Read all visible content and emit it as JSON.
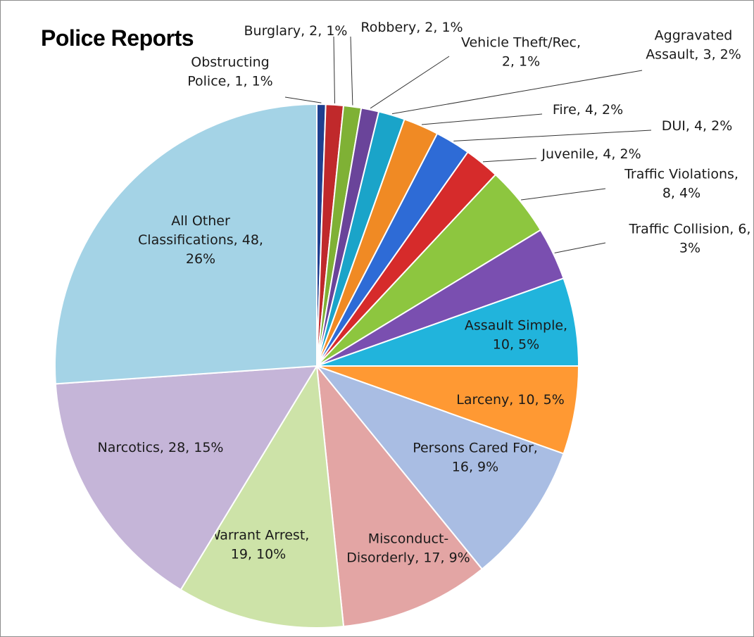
{
  "chart_data": {
    "type": "pie",
    "title": "Police Reports",
    "slices": [
      {
        "name": "Obstructing Police",
        "value": 1,
        "percent": "1%",
        "label_lines": [
          "Obstructing",
          "Police, 1, 1%"
        ],
        "color": "#1f3f8f"
      },
      {
        "name": "Burglary",
        "value": 2,
        "percent": "1%",
        "label_lines": [
          "Burglary, 2, 1%"
        ],
        "color": "#c0292b"
      },
      {
        "name": "Robbery",
        "value": 2,
        "percent": "1%",
        "label_lines": [
          "Robbery, 2, 1%"
        ],
        "color": "#7fb135"
      },
      {
        "name": "Vehicle Theft/Rec",
        "value": 2,
        "percent": "1%",
        "label_lines": [
          "Vehicle Theft/Rec,",
          "2, 1%"
        ],
        "color": "#6a449a"
      },
      {
        "name": "Aggravated Assault",
        "value": 3,
        "percent": "2%",
        "label_lines": [
          "Aggravated",
          "Assault, 3, 2%"
        ],
        "color": "#1aa4c9"
      },
      {
        "name": "Fire",
        "value": 4,
        "percent": "2%",
        "label_lines": [
          "Fire, 4, 2%"
        ],
        "color": "#f08a24"
      },
      {
        "name": "DUI",
        "value": 4,
        "percent": "2%",
        "label_lines": [
          "DUI, 4, 2%"
        ],
        "color": "#2e6bd6"
      },
      {
        "name": "Juvenile",
        "value": 4,
        "percent": "2%",
        "label_lines": [
          "Juvenile, 4, 2%"
        ],
        "color": "#d62b2b"
      },
      {
        "name": "Traffic Violations",
        "value": 8,
        "percent": "4%",
        "label_lines": [
          "Traffic Violations,",
          "8, 4%"
        ],
        "color": "#8dc63f"
      },
      {
        "name": "Traffic Collision",
        "value": 6,
        "percent": "3%",
        "label_lines": [
          "Traffic Collision, 6,",
          "3%"
        ],
        "color": "#7a4fb0"
      },
      {
        "name": "Assault Simple",
        "value": 10,
        "percent": "5%",
        "label_lines": [
          "Assault Simple,",
          "10, 5%"
        ],
        "color": "#21b4dc"
      },
      {
        "name": "Larceny",
        "value": 10,
        "percent": "5%",
        "label_lines": [
          "Larceny, 10, 5%"
        ],
        "color": "#ff9933"
      },
      {
        "name": "Persons Cared For",
        "value": 16,
        "percent": "9%",
        "label_lines": [
          "Persons Cared For,",
          "16, 9%"
        ],
        "color": "#a9bde3"
      },
      {
        "name": "Misconduct-Disorderly",
        "value": 17,
        "percent": "9%",
        "label_lines": [
          "Misconduct-",
          "Disorderly, 17, 9%"
        ],
        "color": "#e3a5a4"
      },
      {
        "name": "Warrant Arrest",
        "value": 19,
        "percent": "10%",
        "label_lines": [
          "Warrant Arrest,",
          "19, 10%"
        ],
        "color": "#cde3a8"
      },
      {
        "name": "Narcotics",
        "value": 28,
        "percent": "15%",
        "label_lines": [
          "Narcotics, 28, 15%"
        ],
        "color": "#c5b5d8"
      },
      {
        "name": "All Other Classifications",
        "value": 48,
        "percent": "26%",
        "label_lines": [
          "All Other",
          "Classifications, 48,",
          "26%"
        ],
        "color": "#a4d3e6"
      }
    ]
  }
}
